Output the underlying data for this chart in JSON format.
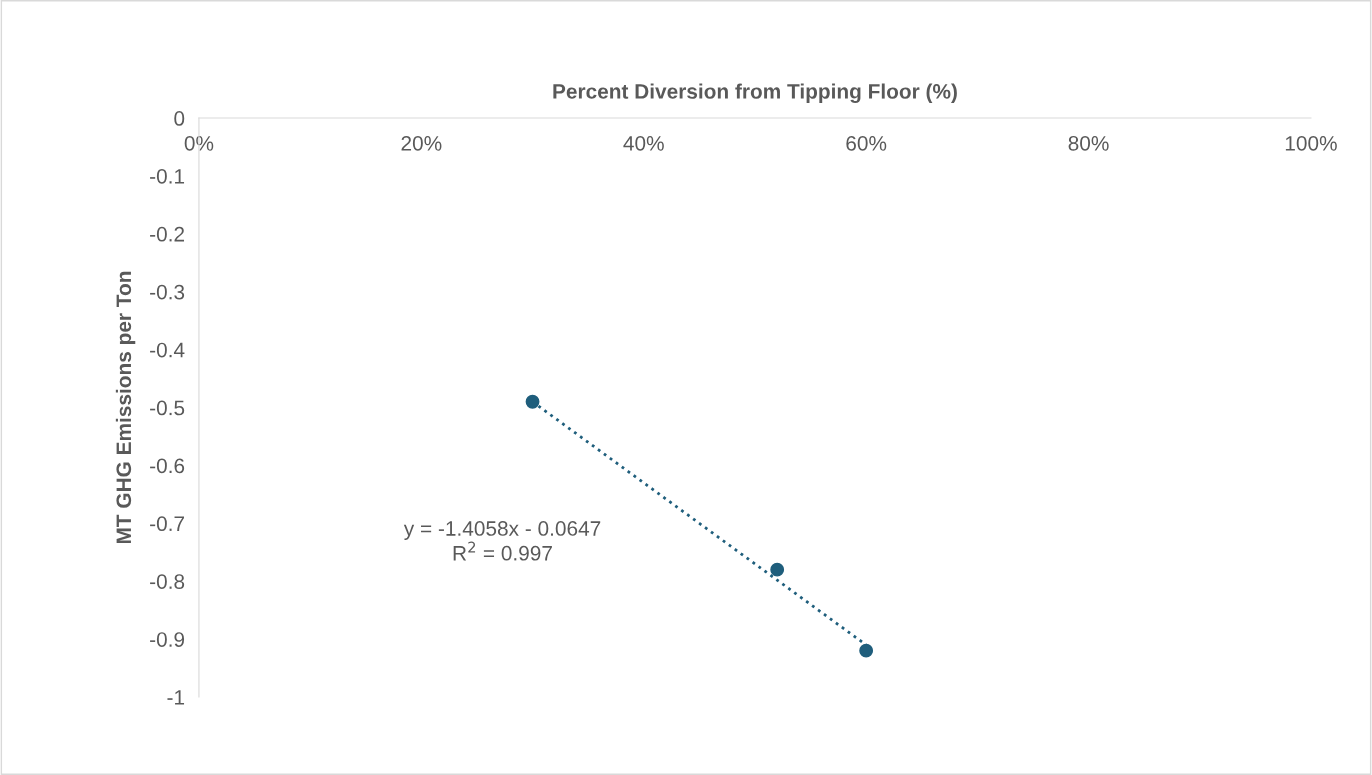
{
  "chart_data": {
    "type": "scatter",
    "xlabel": "Percent Diversion from Tipping Floor (%)",
    "ylabel": "MT GHG Emissions per Ton",
    "xlim": [
      0,
      100
    ],
    "xticks": [
      {
        "value": 0,
        "label": "0%"
      },
      {
        "value": 20,
        "label": "20%"
      },
      {
        "value": 40,
        "label": "40%"
      },
      {
        "value": 60,
        "label": "60%"
      },
      {
        "value": 80,
        "label": "80%"
      },
      {
        "value": 100,
        "label": "100%"
      }
    ],
    "ylim": [
      -1,
      0
    ],
    "yticks": [
      -1,
      -0.9,
      -0.8,
      -0.7,
      -0.6,
      -0.5,
      -0.4,
      -0.3,
      -0.2,
      -0.1,
      0
    ],
    "series": [
      {
        "color": "#1f5e7c",
        "x": [
          30,
          52,
          60
        ],
        "values": [
          -0.49,
          -0.78,
          -0.92
        ],
        "marker": "circle"
      },
      {
        "type": "line",
        "color": "#1f5e7c",
        "x": [
          30,
          60
        ],
        "values": [
          -0.49,
          -0.91
        ],
        "line_style": "dotted",
        "marker": "none"
      }
    ],
    "annotations": [
      "y = -1.4058x - 0.0647",
      "R$^{2}$ = 0.997"
    ]
  }
}
